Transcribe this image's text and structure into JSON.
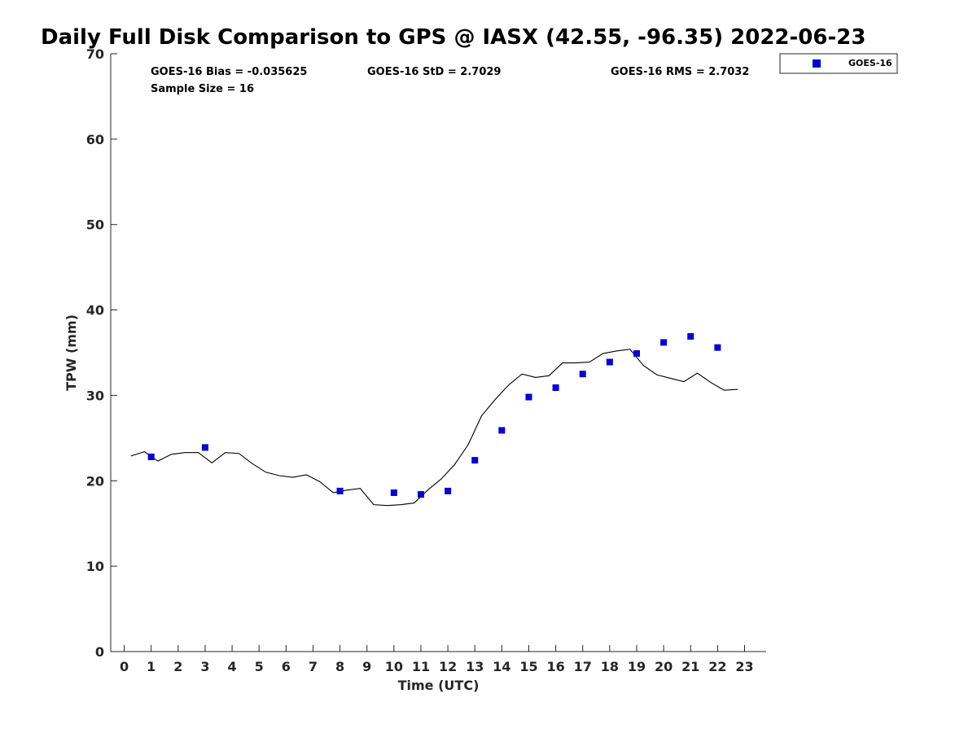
{
  "chart_data": {
    "type": "scatter",
    "title": "Daily Full Disk Comparison to GPS @ IASX (42.55, -96.35) 2022-06-23",
    "xlabel": "Time (UTC)",
    "ylabel": "TPW (mm)",
    "xlim": [
      -0.5,
      23.8
    ],
    "ylim": [
      0,
      70
    ],
    "xticks": [
      0,
      1,
      2,
      3,
      4,
      5,
      6,
      7,
      8,
      9,
      10,
      11,
      12,
      13,
      14,
      15,
      16,
      17,
      18,
      19,
      20,
      21,
      22,
      23
    ],
    "yticks": [
      0,
      10,
      20,
      30,
      40,
      50,
      60,
      70
    ],
    "grid": false,
    "legend_position": "top-right",
    "stats": {
      "bias": "GOES-16 Bias = -0.035625",
      "std": "GOES-16 StD = 2.7029",
      "rms": "GOES-16 RMS = 2.7032",
      "sample_size": "Sample Size = 16"
    },
    "series": [
      {
        "name": "GOES-16",
        "kind": "scatter",
        "marker": "square",
        "color": "#0000d8",
        "x": [
          1,
          3,
          8,
          10,
          11,
          12,
          13,
          14,
          15,
          16,
          17,
          18,
          19,
          20,
          21,
          22
        ],
        "y": [
          22.8,
          23.9,
          18.8,
          18.6,
          18.4,
          18.8,
          22.4,
          25.9,
          29.8,
          30.9,
          32.5,
          33.9,
          34.9,
          36.2,
          36.9,
          35.6
        ]
      },
      {
        "kind": "line",
        "color": "#000000",
        "x": [
          0.25,
          0.75,
          1.25,
          1.75,
          2.25,
          2.75,
          3.25,
          3.75,
          4.25,
          4.75,
          5.25,
          5.75,
          6.25,
          6.75,
          7.25,
          7.75,
          8.25,
          8.75,
          9.25,
          9.75,
          10.25,
          10.75,
          11.25,
          11.75,
          12.25,
          12.75,
          13.25,
          13.75,
          14.25,
          14.75,
          15.25,
          15.75,
          16.25,
          16.75,
          17.25,
          17.75,
          18.25,
          18.75,
          19.25,
          19.75,
          20.25,
          20.75,
          21.25,
          21.75,
          22.25,
          22.75
        ],
        "y": [
          22.9,
          23.4,
          22.3,
          23.1,
          23.3,
          23.3,
          22.1,
          23.3,
          23.2,
          22.0,
          21.0,
          20.6,
          20.4,
          20.7,
          19.9,
          18.6,
          18.9,
          19.1,
          17.2,
          17.1,
          17.2,
          17.4,
          18.9,
          20.2,
          21.9,
          24.2,
          27.6,
          29.5,
          31.2,
          32.5,
          32.1,
          32.3,
          33.8,
          33.8,
          33.9,
          34.9,
          35.2,
          35.4,
          33.5,
          32.4,
          32.0,
          31.6,
          32.6,
          31.5,
          30.6,
          30.7
        ]
      }
    ]
  }
}
